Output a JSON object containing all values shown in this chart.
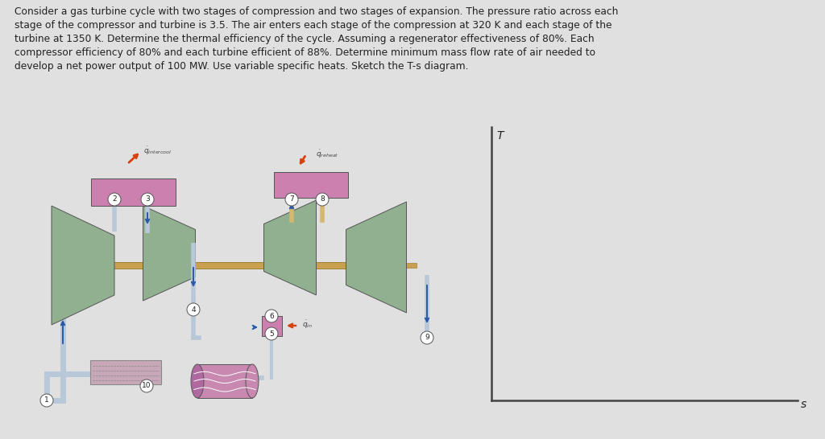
{
  "bg_color": "#e0e0e0",
  "text_color": "#222222",
  "text_lines": [
    "Consider a gas turbine cycle with two stages of compression and two stages of expansion. The pressure ratio across each",
    "stage of the compressor and turbine is 3.5. The air enters each stage of the compression at 320 K and each stage of the",
    "turbine at 1350 K. Determine the thermal efficiency of the cycle. Assuming a regenerator effectiveness of 80%. Each",
    "compressor efficiency of 80% and each turbine efficient of 88%. Determine minimum mass flow rate of air needed to",
    "develop a net power output of 100 MW. Use variable specific heats. Sketch the T-s diagram."
  ],
  "text_fontsize": 8.8,
  "pink_color": "#cc80b0",
  "green_color": "#90b090",
  "shaft_color": "#c8a050",
  "pipe_color": "#b8c8d8",
  "pipe_dark": "#98a8b8",
  "arrow_blue": "#2858a8",
  "arrow_orange": "#d84010",
  "regen_color": "#c888b0",
  "label_color": "#444444",
  "ts_line_color": "#444444",
  "node_bg": "#ffffff",
  "node_edge": "#555555"
}
